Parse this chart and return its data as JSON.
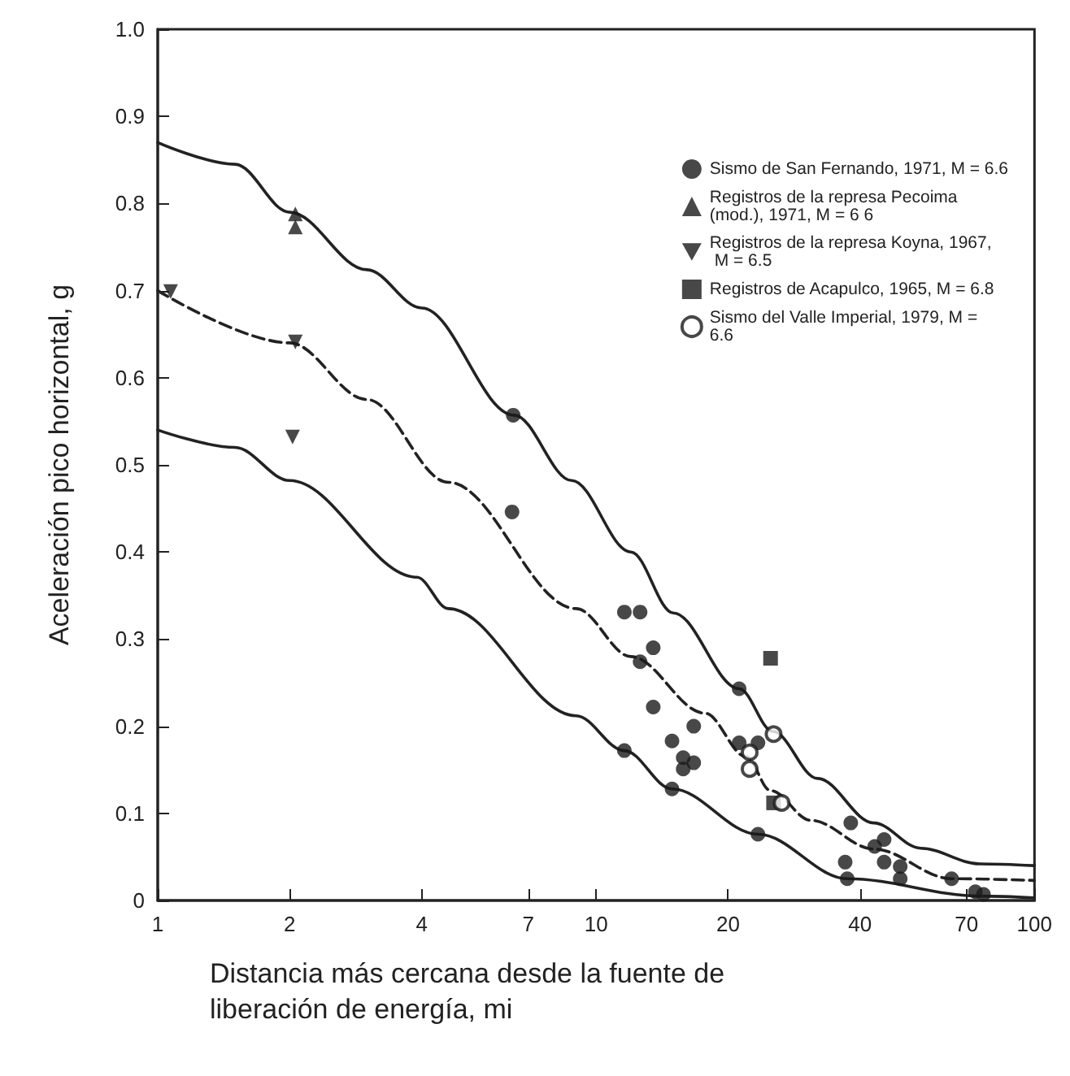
{
  "chart_data": {
    "type": "scatter",
    "xlabel": "Distancia más cercana desde la fuente de liberación de energía, mi",
    "ylabel": "Aceleración pico horizontal, g",
    "log": "x",
    "xlim": [
      1,
      100
    ],
    "xticks": [
      1,
      2,
      4,
      7,
      10,
      20,
      40,
      70,
      100
    ],
    "ylim": [
      0,
      1.0
    ],
    "yticks": [
      {
        "value": 0,
        "label": "0"
      },
      0.1,
      0.2,
      0.3,
      0.4,
      0.5,
      0.6,
      0.7,
      0.8,
      0.9,
      {
        "value": 1.0,
        "label": "1.0"
      }
    ],
    "grid": false,
    "legend": "top right",
    "series": [
      {
        "type": "line",
        "color": "#222222",
        "line_style": "solid",
        "marker": "none",
        "x": [
          1,
          1.5,
          2,
          3,
          4,
          6.5,
          8.8,
          12,
          15,
          21.2,
          25.3,
          32,
          43,
          55,
          75,
          100
        ],
        "values": [
          0.87,
          0.845,
          0.79,
          0.724,
          0.68,
          0.557,
          0.482,
          0.4,
          0.33,
          0.243,
          0.194,
          0.14,
          0.089,
          0.06,
          0.042,
          0.04
        ]
      },
      {
        "type": "line",
        "color": "#222222",
        "line_style": "dashed",
        "marker": "none",
        "x": [
          1,
          2,
          3,
          4.6,
          9,
          12,
          17.7,
          22,
          25,
          30.9,
          43,
          64.7,
          100
        ],
        "values": [
          0.7,
          0.64,
          0.575,
          0.48,
          0.335,
          0.28,
          0.215,
          0.165,
          0.126,
          0.092,
          0.059,
          0.025,
          0.023
        ]
      },
      {
        "type": "line",
        "color": "#222222",
        "line_style": "solid",
        "marker": "none",
        "x": [
          1,
          1.5,
          2,
          3.9,
          4.6,
          9,
          11.6,
          14.9,
          23.4,
          37.4,
          75.5,
          100
        ],
        "values": [
          0.54,
          0.52,
          0.482,
          0.371,
          0.335,
          0.212,
          0.172,
          0.128,
          0.076,
          0.025,
          0.005,
          0.003
        ]
      },
      {
        "name": "Sismo de San Fernando, 1971, M = 6.6",
        "color": "#1a1a1a",
        "marker": "circle",
        "x": [
          6.47,
          6.43,
          11.6,
          12.6,
          13.5,
          12.6,
          13.5,
          11.6,
          14.9,
          14.9,
          16.7,
          15.8,
          16.7,
          15.8,
          21.2,
          21.2,
          23.4,
          23.4,
          38.1,
          37.0,
          37.4,
          43.2,
          45.4,
          45.4,
          49.4,
          49.4,
          64.7,
          73.3,
          76.5
        ],
        "values": [
          0.557,
          0.446,
          0.331,
          0.331,
          0.29,
          0.274,
          0.222,
          0.172,
          0.183,
          0.128,
          0.2,
          0.164,
          0.158,
          0.151,
          0.243,
          0.181,
          0.181,
          0.076,
          0.089,
          0.044,
          0.025,
          0.062,
          0.07,
          0.044,
          0.039,
          0.025,
          0.025,
          0.01,
          0.007
        ]
      },
      {
        "name": "Registros de la represa Pecoima (mod.), 1971, M = 6 6",
        "color": "#1a1a1a",
        "marker": "triangle",
        "x": [
          2.06,
          2.06
        ],
        "values": [
          0.788,
          0.773
        ]
      },
      {
        "name": "Registros de la represa Koyna, 1967, M = 6.5",
        "color": "#1a1a1a",
        "marker": "triangle-down",
        "x": [
          1.07,
          2.06,
          2.03
        ],
        "values": [
          0.699,
          0.641,
          0.532
        ]
      },
      {
        "name": "Registros de Acapulco, 1965, M = 6.8",
        "color": "#1a1a1a",
        "marker": "square",
        "x": [
          25.0,
          25.4
        ],
        "values": [
          0.278,
          0.112
        ]
      },
      {
        "name": "Sismo del Valle Imperial, 1979, M = 6.6",
        "color": "#1a1a1a",
        "marker": "circle-open",
        "x": [
          25.4,
          22.4,
          22.4,
          26.5
        ],
        "values": [
          0.191,
          0.17,
          0.151,
          0.112
        ]
      }
    ]
  }
}
